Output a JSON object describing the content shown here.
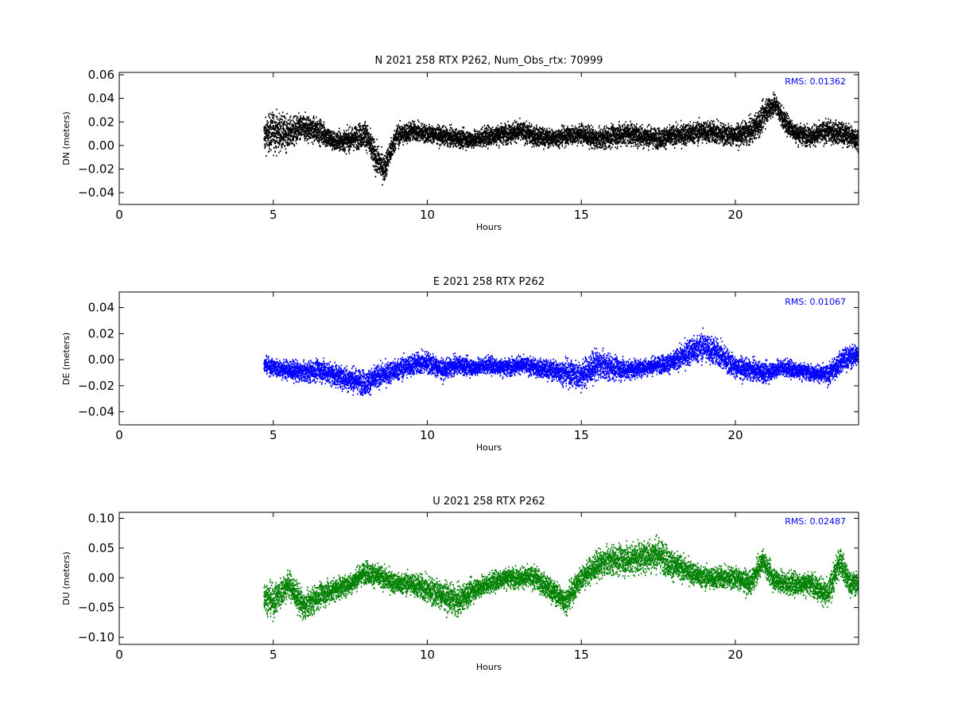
{
  "chart_data": [
    {
      "type": "scatter",
      "title": "N 2021 258 RTX  P262, Num_Obs_rtx: 70999",
      "xlabel": "Hours",
      "ylabel": "DN (meters)",
      "xlim": [
        0,
        24
      ],
      "ylim": [
        -0.05,
        0.062
      ],
      "xticks": [
        0,
        5,
        10,
        15,
        20
      ],
      "xtick_labels": [
        "0",
        "5",
        "10",
        "15",
        "20"
      ],
      "yticks": [
        -0.04,
        -0.02,
        0.0,
        0.02,
        0.04,
        0.06
      ],
      "ytick_labels": [
        "−0.04",
        "−0.02",
        "0.00",
        "0.02",
        "0.04",
        "0.06"
      ],
      "annotation": "RMS:  0.01362",
      "color": "#000000",
      "series": [
        {
          "x": [
            4.7,
            5.0,
            5.5,
            6.0,
            6.5,
            7.0,
            7.5,
            8.0,
            8.3,
            8.6,
            9.0,
            9.5,
            10.0,
            10.5,
            11.0,
            11.5,
            12.0,
            12.5,
            13.0,
            13.5,
            14.0,
            14.5,
            15.0,
            15.5,
            16.0,
            16.5,
            17.0,
            17.5,
            18.0,
            18.5,
            19.0,
            19.5,
            20.0,
            20.5,
            20.8,
            21.0,
            21.3,
            21.6,
            22.0,
            22.5,
            23.0,
            23.5,
            24.0
          ],
          "y": [
            0.008,
            0.012,
            0.01,
            0.015,
            0.012,
            0.003,
            0.005,
            0.01,
            -0.01,
            -0.02,
            0.008,
            0.012,
            0.01,
            0.008,
            0.006,
            0.005,
            0.008,
            0.01,
            0.012,
            0.008,
            0.006,
            0.008,
            0.01,
            0.005,
            0.008,
            0.01,
            0.008,
            0.006,
            0.008,
            0.01,
            0.012,
            0.01,
            0.008,
            0.012,
            0.02,
            0.03,
            0.035,
            0.02,
            0.01,
            0.008,
            0.012,
            0.01,
            0.005
          ],
          "spread": [
            0.014,
            0.018,
            0.014,
            0.012,
            0.011,
            0.009,
            0.01,
            0.012,
            0.014,
            0.012,
            0.01,
            0.009,
            0.008,
            0.008,
            0.008,
            0.008,
            0.009,
            0.009,
            0.009,
            0.009,
            0.008,
            0.008,
            0.009,
            0.009,
            0.01,
            0.01,
            0.01,
            0.009,
            0.009,
            0.01,
            0.01,
            0.01,
            0.009,
            0.011,
            0.012,
            0.012,
            0.01,
            0.009,
            0.009,
            0.009,
            0.01,
            0.01,
            0.01
          ]
        }
      ]
    },
    {
      "type": "scatter",
      "title": "E 2021 258 RTX  P262",
      "xlabel": "Hours",
      "ylabel": "DE (meters)",
      "xlim": [
        0,
        24
      ],
      "ylim": [
        -0.05,
        0.052
      ],
      "xticks": [
        0,
        5,
        10,
        15,
        20
      ],
      "xtick_labels": [
        "0",
        "5",
        "10",
        "15",
        "20"
      ],
      "yticks": [
        -0.04,
        -0.02,
        0.0,
        0.02,
        0.04
      ],
      "ytick_labels": [
        "−0.04",
        "−0.02",
        "0.00",
        "0.02",
        "0.04"
      ],
      "annotation": "RMS:  0.01067",
      "color": "#0000ff",
      "series": [
        {
          "x": [
            4.7,
            5.0,
            5.5,
            6.0,
            6.5,
            7.0,
            7.5,
            8.0,
            8.5,
            9.0,
            9.5,
            10.0,
            10.5,
            11.0,
            11.5,
            12.0,
            12.5,
            13.0,
            13.5,
            14.0,
            14.5,
            15.0,
            15.5,
            16.0,
            16.5,
            17.0,
            17.5,
            18.0,
            18.5,
            19.0,
            19.5,
            20.0,
            20.5,
            21.0,
            21.5,
            22.0,
            22.5,
            23.0,
            23.5,
            24.0
          ],
          "y": [
            -0.004,
            -0.006,
            -0.008,
            -0.01,
            -0.008,
            -0.012,
            -0.015,
            -0.018,
            -0.012,
            -0.008,
            -0.004,
            -0.002,
            -0.008,
            -0.004,
            -0.006,
            -0.004,
            -0.006,
            -0.004,
            -0.006,
            -0.008,
            -0.01,
            -0.012,
            -0.004,
            -0.006,
            -0.008,
            -0.006,
            -0.004,
            -0.002,
            0.006,
            0.01,
            0.004,
            -0.006,
            -0.008,
            -0.01,
            -0.006,
            -0.008,
            -0.01,
            -0.012,
            0.0,
            0.004
          ],
          "spread": [
            0.006,
            0.007,
            0.008,
            0.008,
            0.009,
            0.009,
            0.01,
            0.01,
            0.009,
            0.009,
            0.009,
            0.009,
            0.008,
            0.007,
            0.007,
            0.007,
            0.007,
            0.007,
            0.007,
            0.008,
            0.01,
            0.012,
            0.012,
            0.01,
            0.008,
            0.007,
            0.007,
            0.008,
            0.011,
            0.012,
            0.011,
            0.009,
            0.008,
            0.008,
            0.007,
            0.007,
            0.006,
            0.008,
            0.009,
            0.009
          ]
        }
      ]
    },
    {
      "type": "scatter",
      "title": "U 2021 258 RTX  P262",
      "xlabel": "Hours",
      "ylabel": "DU (meters)",
      "xlim": [
        0,
        24
      ],
      "ylim": [
        -0.112,
        0.11
      ],
      "xticks": [
        0,
        5,
        10,
        15,
        20
      ],
      "xtick_labels": [
        "0",
        "5",
        "10",
        "15",
        "20"
      ],
      "yticks": [
        -0.1,
        -0.05,
        0.0,
        0.05,
        0.1
      ],
      "ytick_labels": [
        "−0.10",
        "−0.05",
        "0.00",
        "0.05",
        "0.10"
      ],
      "annotation": "RMS:  0.02487",
      "color": "#008000",
      "series": [
        {
          "x": [
            4.7,
            5.0,
            5.5,
            6.0,
            6.5,
            7.0,
            7.5,
            8.0,
            8.5,
            9.0,
            9.5,
            10.0,
            10.5,
            11.0,
            11.5,
            12.0,
            12.5,
            13.0,
            13.5,
            14.0,
            14.5,
            15.0,
            15.5,
            16.0,
            16.5,
            17.0,
            17.5,
            18.0,
            18.5,
            19.0,
            19.5,
            20.0,
            20.5,
            20.9,
            21.2,
            21.6,
            22.0,
            22.5,
            23.0,
            23.4,
            23.7,
            24.0
          ],
          "y": [
            -0.03,
            -0.04,
            -0.01,
            -0.05,
            -0.03,
            -0.02,
            -0.01,
            0.01,
            0.0,
            -0.01,
            -0.01,
            -0.02,
            -0.03,
            -0.04,
            -0.02,
            -0.01,
            0.0,
            0.0,
            0.0,
            -0.02,
            -0.04,
            0.0,
            0.02,
            0.03,
            0.03,
            0.035,
            0.04,
            0.02,
            0.01,
            0.0,
            0.0,
            0.0,
            -0.01,
            0.03,
            0.0,
            -0.01,
            -0.01,
            -0.01,
            -0.03,
            0.03,
            -0.01,
            -0.01
          ],
          "spread": [
            0.025,
            0.028,
            0.025,
            0.025,
            0.022,
            0.02,
            0.018,
            0.02,
            0.02,
            0.018,
            0.02,
            0.025,
            0.025,
            0.025,
            0.02,
            0.018,
            0.018,
            0.018,
            0.02,
            0.02,
            0.022,
            0.022,
            0.025,
            0.025,
            0.028,
            0.028,
            0.03,
            0.025,
            0.02,
            0.02,
            0.02,
            0.02,
            0.02,
            0.02,
            0.02,
            0.022,
            0.02,
            0.02,
            0.025,
            0.025,
            0.02,
            0.02
          ]
        }
      ]
    }
  ]
}
